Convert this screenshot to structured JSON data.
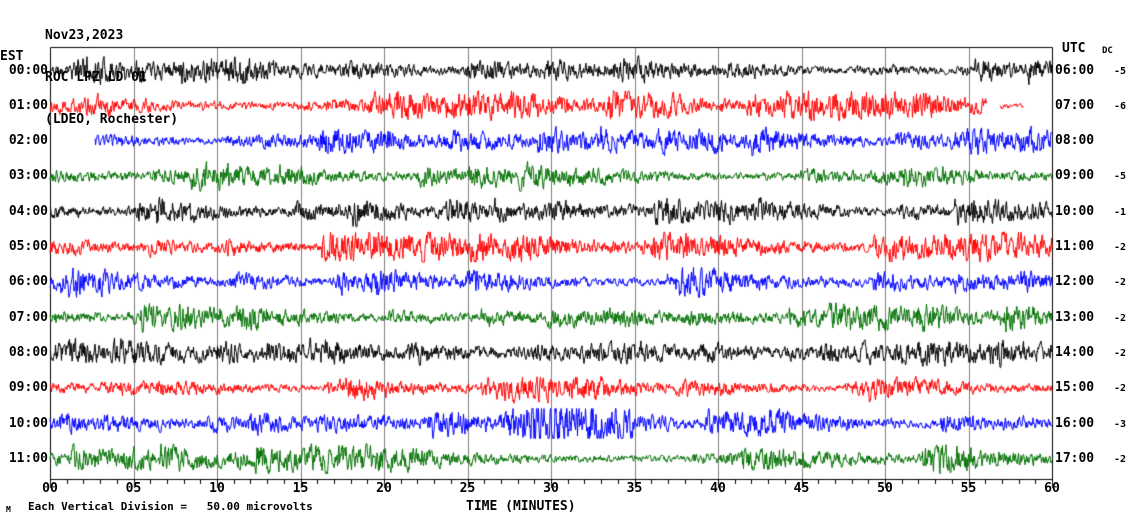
{
  "header": {
    "date": "Nov23,2023",
    "station": "ROC LPZ LD 01",
    "location": "(LDEO, Rochester)"
  },
  "corner_labels": {
    "left_timezone": "EST",
    "right_timezone": "UTC",
    "dc_column": "DC"
  },
  "footer": {
    "scale_note": "Each Vertical Division =   50.00 microvolts",
    "xaxis_title": "TIME (MINUTES)",
    "logo_mark": "M"
  },
  "axis": {
    "tick_labels": [
      "00",
      "05",
      "10",
      "15",
      "20",
      "25",
      "30",
      "35",
      "40",
      "45",
      "50",
      "55",
      "60"
    ],
    "minutes_min": 0,
    "minutes_max": 60,
    "major_step_minutes": 5,
    "minor_step_minutes": 1
  },
  "colors": {
    "trace_black": "#000000",
    "trace_red": "#ff0000",
    "trace_blue": "#0000ff",
    "trace_green": "#007000",
    "gridline": "#7f7f7f",
    "border": "#000000",
    "background": "#ffffff",
    "text": "#000000"
  },
  "chart_data": {
    "type": "line",
    "subtype": "seismogram-helicorder",
    "title": "ROC LPZ LD 01 — Nov23,2023 — (LDEO, Rochester)",
    "xlabel": "TIME (MINUTES)",
    "x_range_minutes": [
      0,
      60
    ],
    "grid": "vertical gray lines every 5 minutes; black border at 0 and 60",
    "vertical_scale": "Each Vertical Division = 50.00 microvolts",
    "rows": [
      {
        "est": "00:00",
        "utc": "06:00",
        "dc": "-5",
        "color": "#000000",
        "segments": [
          [
            0,
            60
          ]
        ],
        "amp": 5.0,
        "seed": 11
      },
      {
        "est": "01:00",
        "utc": "07:00",
        "dc": "-6",
        "color": "#ff0000",
        "segments": [
          [
            0,
            56.1
          ],
          [
            56.9,
            58.3
          ]
        ],
        "amp": 5.8,
        "seed": 22
      },
      {
        "est": "02:00",
        "utc": "08:00",
        "dc": "",
        "color": "#0000ff",
        "segments": [
          [
            2.7,
            60
          ]
        ],
        "amp": 5.2,
        "seed": 33
      },
      {
        "est": "03:00",
        "utc": "09:00",
        "dc": "-5",
        "color": "#007000",
        "segments": [
          [
            0,
            60
          ]
        ],
        "amp": 5.5,
        "seed": 44
      },
      {
        "est": "04:00",
        "utc": "10:00",
        "dc": "-1",
        "color": "#000000",
        "segments": [
          [
            0,
            60
          ]
        ],
        "amp": 5.0,
        "seed": 55
      },
      {
        "est": "05:00",
        "utc": "11:00",
        "dc": "-2",
        "color": "#ff0000",
        "segments": [
          [
            0,
            60
          ]
        ],
        "amp": 6.2,
        "seed": 66
      },
      {
        "est": "06:00",
        "utc": "12:00",
        "dc": "-2",
        "color": "#0000ff",
        "segments": [
          [
            0,
            60
          ]
        ],
        "amp": 5.8,
        "seed": 77
      },
      {
        "est": "07:00",
        "utc": "13:00",
        "dc": "-2",
        "color": "#007000",
        "segments": [
          [
            0,
            60
          ]
        ],
        "amp": 5.2,
        "seed": 88
      },
      {
        "est": "08:00",
        "utc": "14:00",
        "dc": "-2",
        "color": "#000000",
        "segments": [
          [
            0,
            60
          ]
        ],
        "amp": 5.0,
        "seed": 99
      },
      {
        "est": "09:00",
        "utc": "15:00",
        "dc": "-2",
        "color": "#ff0000",
        "segments": [
          [
            0,
            60
          ]
        ],
        "amp": 4.6,
        "seed": 110
      },
      {
        "est": "10:00",
        "utc": "16:00",
        "dc": "-3",
        "color": "#0000ff",
        "segments": [
          [
            0,
            60
          ]
        ],
        "amp": 5.4,
        "seed": 121,
        "burst": [
          27,
          35
        ]
      },
      {
        "est": "11:00",
        "utc": "17:00",
        "dc": "-2",
        "color": "#007000",
        "segments": [
          [
            0,
            60
          ]
        ],
        "amp": 5.5,
        "seed": 132
      }
    ]
  }
}
